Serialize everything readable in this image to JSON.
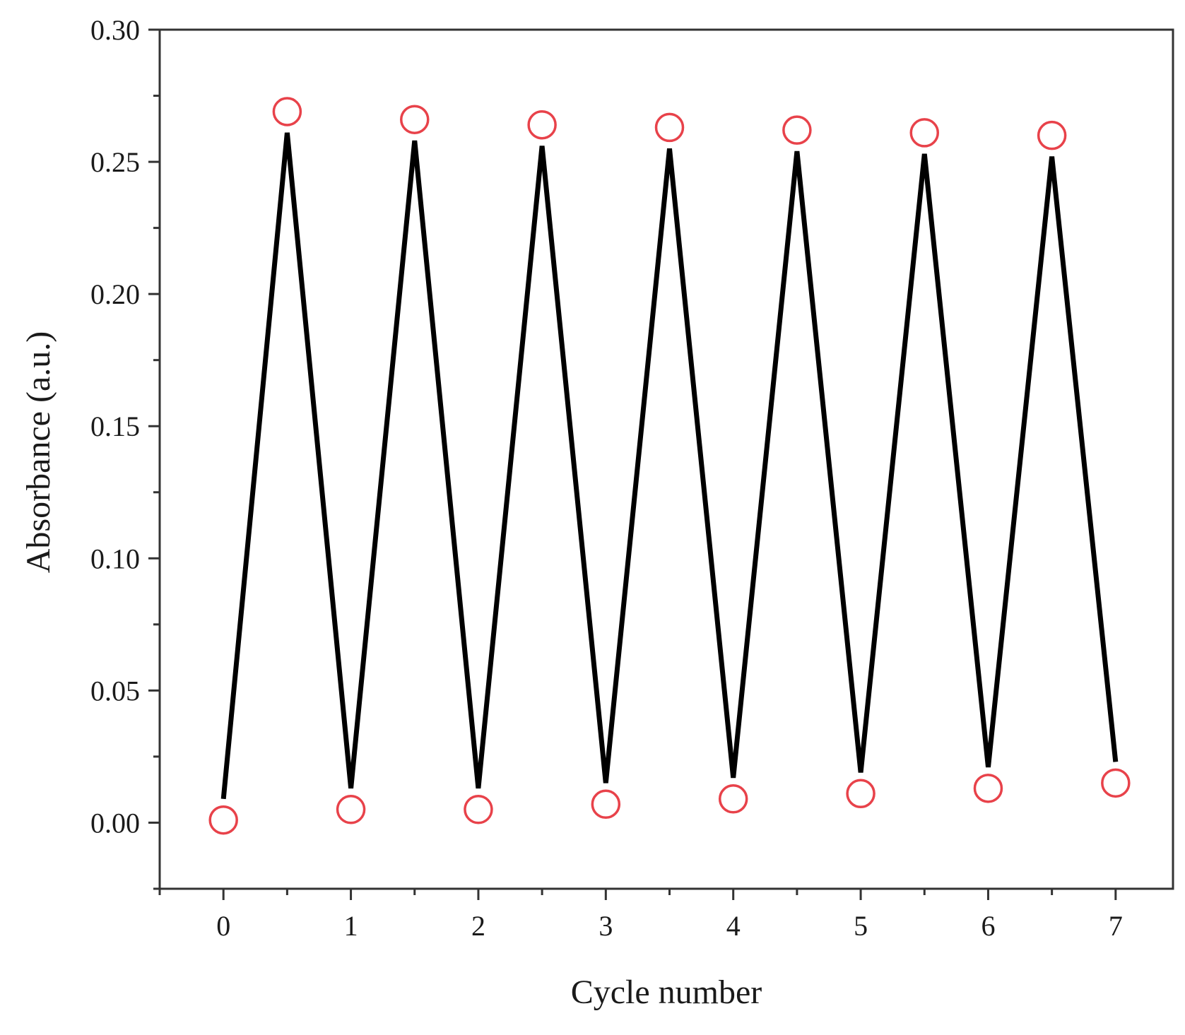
{
  "chart_data": {
    "type": "line",
    "xlabel": "Cycle number",
    "ylabel": "Absorbance (a.u.)",
    "xlim": [
      -0.5,
      7.45
    ],
    "ylim": [
      -0.025,
      0.3
    ],
    "xticks": [
      0,
      1,
      2,
      3,
      4,
      5,
      6,
      7
    ],
    "yticks": [
      0.0,
      0.05,
      0.1,
      0.15,
      0.2,
      0.25,
      0.3
    ],
    "ytick_labels": [
      "0.00",
      "0.05",
      "0.10",
      "0.15",
      "0.20",
      "0.25",
      "0.30"
    ],
    "grid": false,
    "legend": "none",
    "series": [
      {
        "x": [
          0,
          0.5,
          1,
          1.5,
          2,
          2.5,
          3,
          3.5,
          4,
          4.5,
          5,
          5.5,
          6,
          6.5,
          7
        ],
        "y": [
          0.009,
          0.261,
          0.013,
          0.258,
          0.013,
          0.256,
          0.015,
          0.255,
          0.017,
          0.254,
          0.019,
          0.253,
          0.021,
          0.252,
          0.023
        ],
        "color": "#000000",
        "style": "line"
      },
      {
        "x": [
          0,
          0.5,
          1,
          1.5,
          2,
          2.5,
          3,
          3.5,
          4,
          4.5,
          5,
          5.5,
          6,
          6.5,
          7
        ],
        "y": [
          0.001,
          0.269,
          0.005,
          0.266,
          0.005,
          0.264,
          0.007,
          0.263,
          0.009,
          0.262,
          0.011,
          0.261,
          0.013,
          0.26,
          0.015
        ],
        "color": "#e8424a",
        "style": "open-circle"
      }
    ]
  }
}
